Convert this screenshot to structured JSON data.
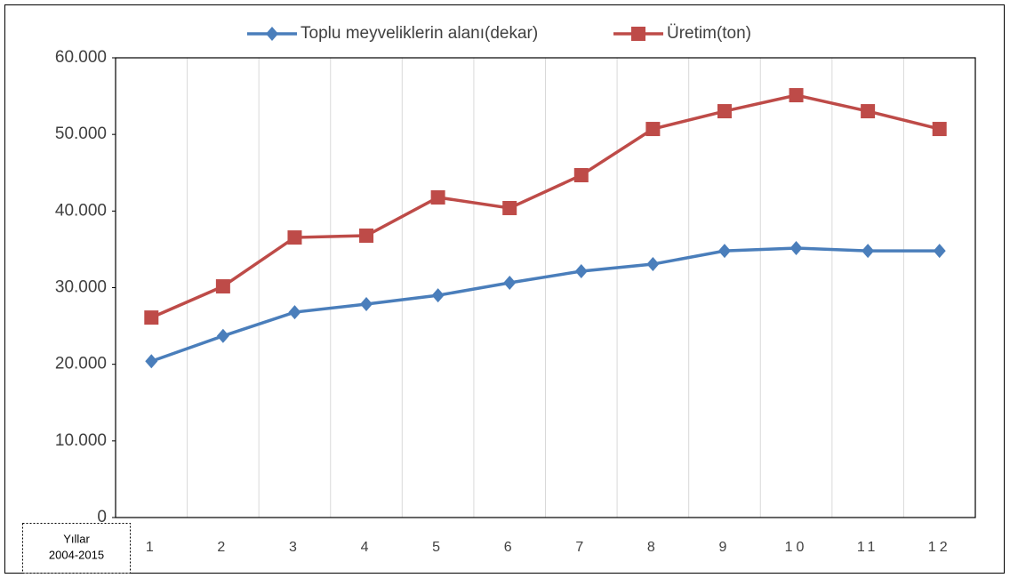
{
  "chart_data": {
    "type": "line",
    "categories": [
      "1",
      "2",
      "3",
      "4",
      "5",
      "6",
      "7",
      "8",
      "9",
      "10",
      "11",
      "12"
    ],
    "series": [
      {
        "name": "Toplu meyveliklerin alanı(dekar)",
        "color": "#4a7ebb",
        "marker": "diamond",
        "values": [
          20400,
          23700,
          26800,
          27850,
          29000,
          30640,
          32150,
          33070,
          34800,
          35160,
          34800,
          34800
        ]
      },
      {
        "name": "Üretim(ton)",
        "color": "#be4b48",
        "marker": "square",
        "values": [
          26100,
          30170,
          36550,
          36790,
          41780,
          40390,
          44680,
          50710,
          53030,
          55120,
          53030,
          50710
        ]
      }
    ],
    "ylim": [
      0,
      60000
    ],
    "yticks": [
      0,
      {
        "value": 10000,
        "label": "10.000"
      },
      {
        "value": 20000,
        "label": "20.000"
      },
      {
        "value": 30000,
        "label": "30.000"
      },
      {
        "value": 40000,
        "label": "40.000"
      },
      {
        "value": 50000,
        "label": "50.000"
      },
      {
        "value": 60000,
        "label": "60.000"
      }
    ],
    "vertical_grid": true,
    "legend": "top",
    "annotation": [
      "Yıllar",
      "2004-2015"
    ]
  }
}
